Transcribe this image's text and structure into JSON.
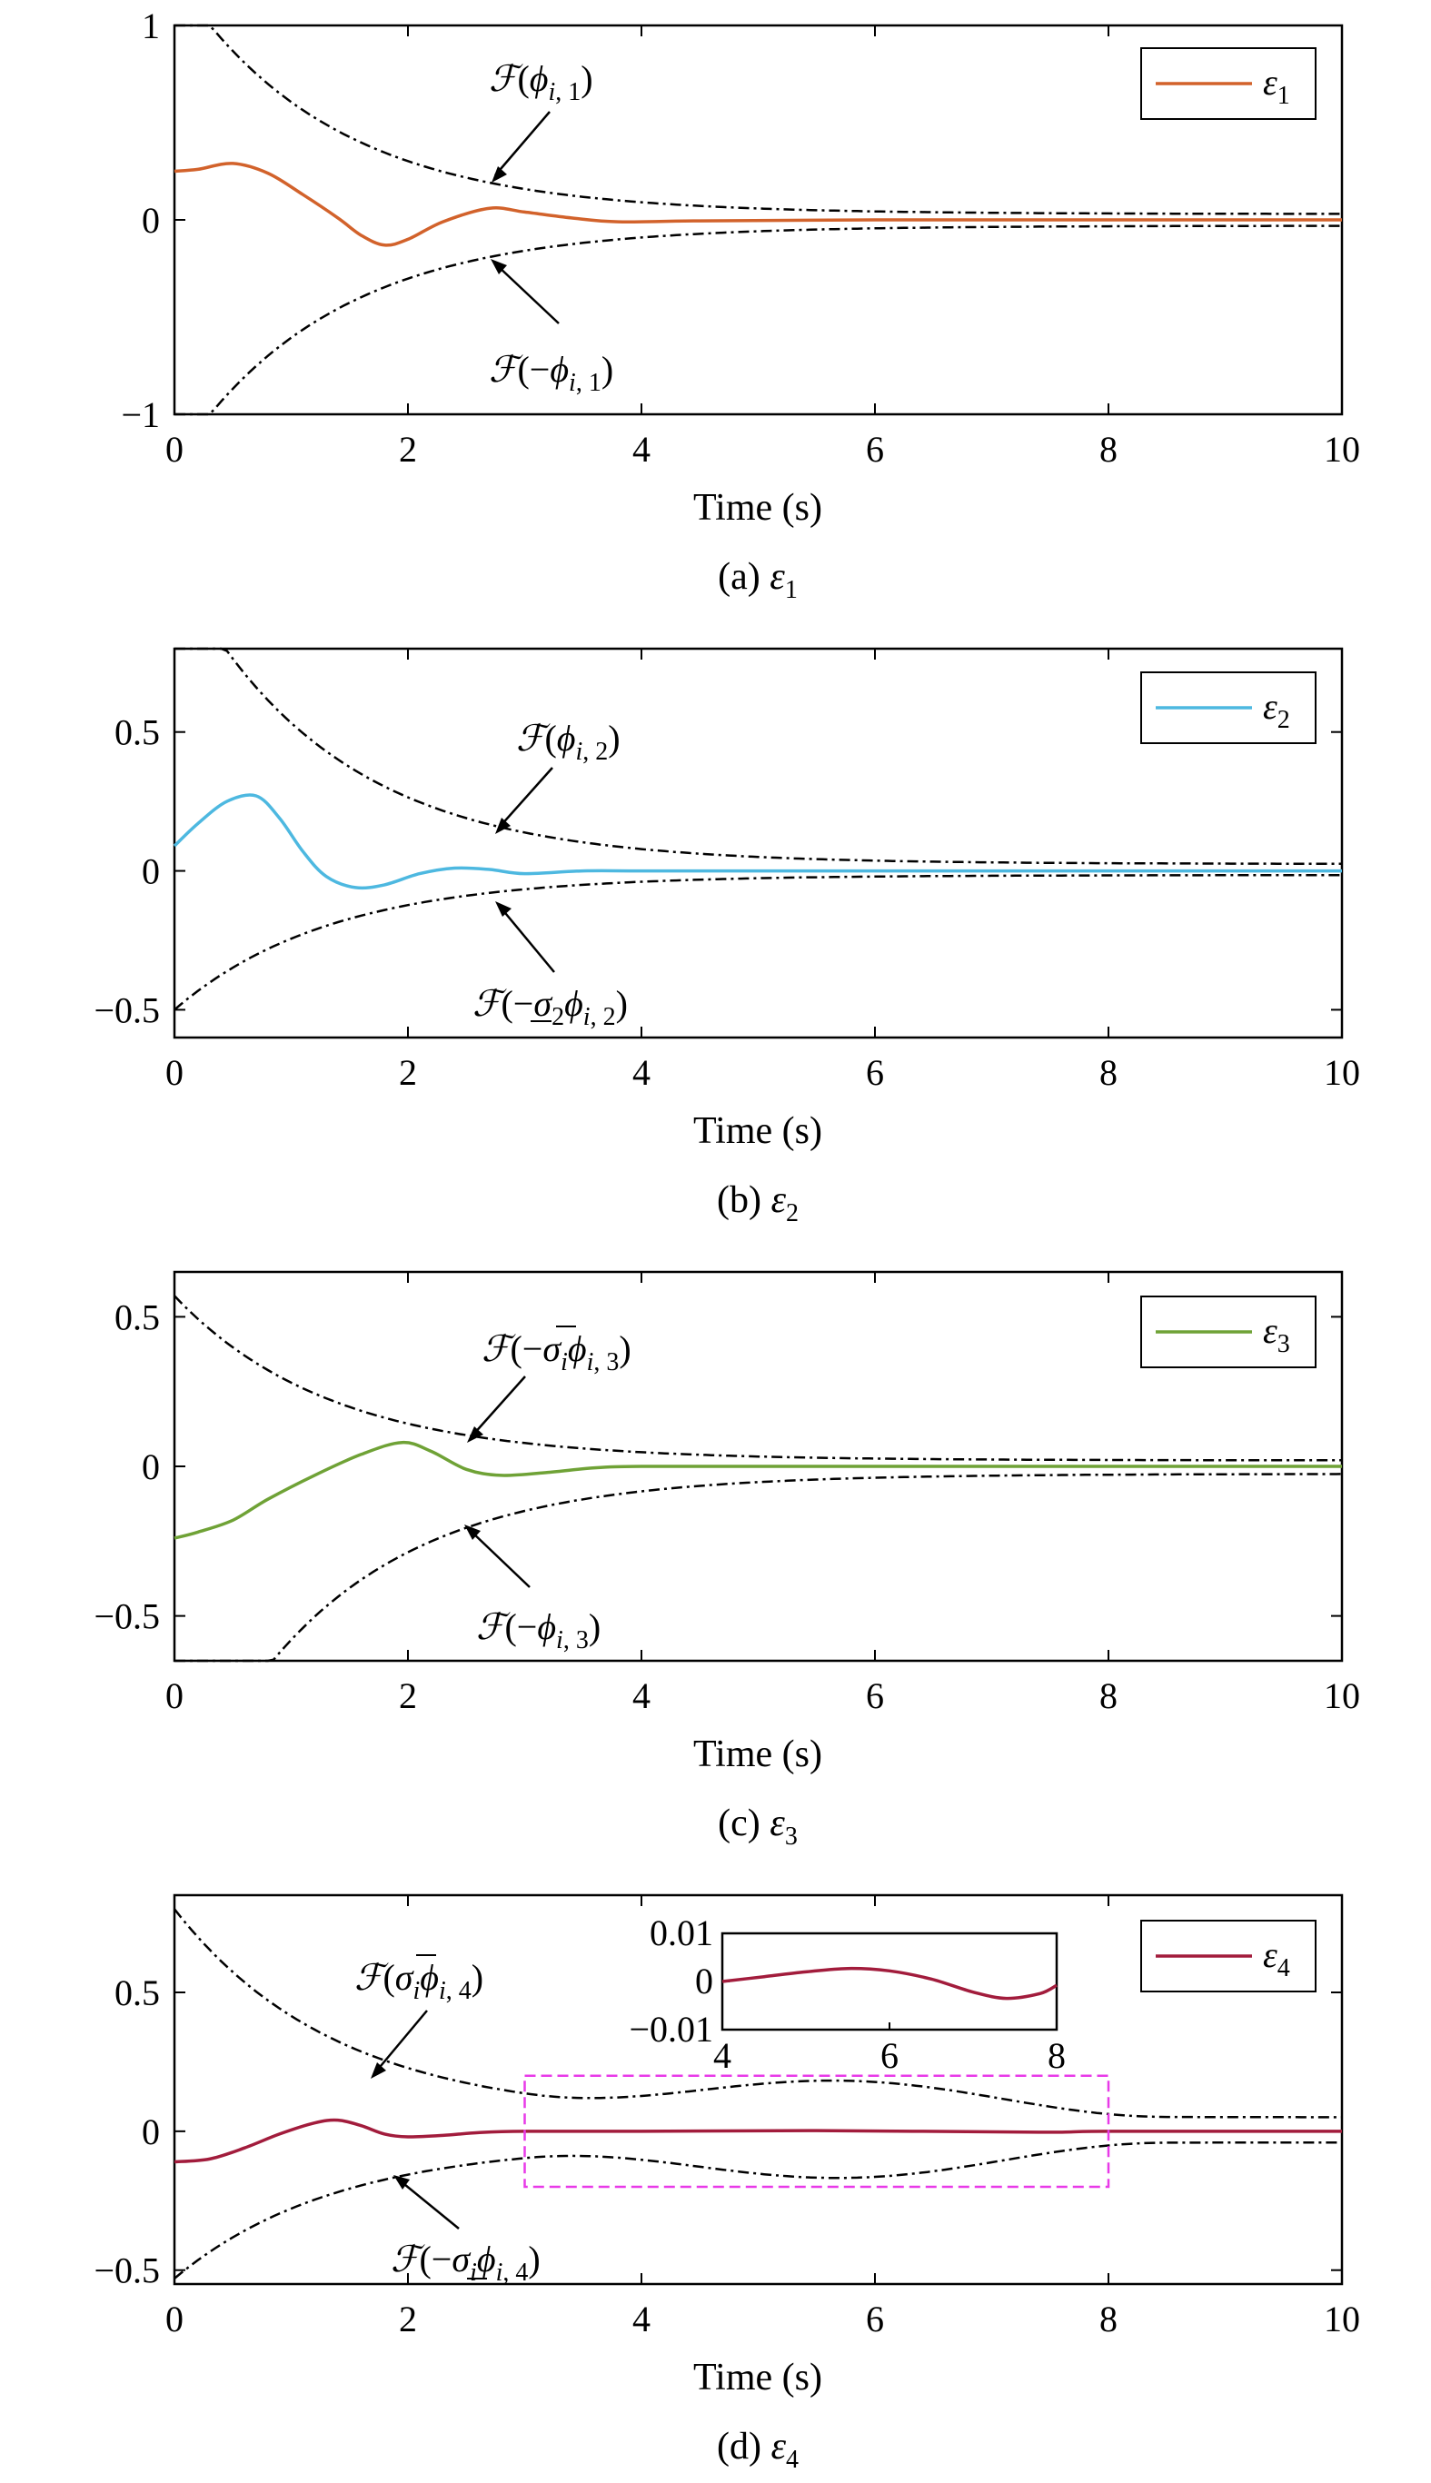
{
  "figure": {
    "x_axis_label": "Time (s)",
    "x_ticks": [
      0,
      2,
      4,
      6,
      8,
      10
    ],
    "xlim": [
      0,
      10
    ]
  },
  "chart_data": [
    {
      "type": "line",
      "caption": "(a) ε1",
      "xlabel": "Time (s)",
      "ylim": [
        -1,
        1
      ],
      "y_ticks": [
        {
          "value": 1,
          "label": "1"
        },
        {
          "value": 0,
          "label": "0"
        },
        {
          "value": -1,
          "label": "−1"
        }
      ],
      "legend": {
        "label": "ε1",
        "position": "top-right"
      },
      "color": "#D2622B",
      "series": [
        {
          "name": "ε1",
          "x": [
            0,
            0.2,
            0.5,
            0.8,
            1.1,
            1.4,
            1.6,
            1.8,
            2.0,
            2.3,
            2.7,
            3.0,
            3.4,
            3.8,
            4.5,
            6,
            8,
            10
          ],
          "y": [
            0.25,
            0.26,
            0.29,
            0.24,
            0.13,
            0.01,
            -0.08,
            -0.13,
            -0.1,
            -0.01,
            0.06,
            0.04,
            0.01,
            -0.01,
            -0.005,
            0.0,
            0.0,
            0.0
          ]
        }
      ],
      "bounds": [
        {
          "label": "F(φi,1)",
          "y_start": 1.25,
          "end": 0.03
        },
        {
          "label": "F(−φi,1)",
          "y_start": -1.25,
          "end": -0.03
        }
      ]
    },
    {
      "type": "line",
      "caption": "(b) ε2",
      "xlabel": "Time (s)",
      "ylim": [
        -0.6,
        0.8
      ],
      "y_ticks": [
        {
          "value": 0.5,
          "label": "0.5"
        },
        {
          "value": 0,
          "label": "0"
        },
        {
          "value": -0.5,
          "label": "−0.5"
        }
      ],
      "legend": {
        "label": "ε2",
        "position": "top-right"
      },
      "color": "#4DB8E0",
      "series": [
        {
          "name": "ε2",
          "x": [
            0,
            0.2,
            0.45,
            0.7,
            0.9,
            1.1,
            1.3,
            1.55,
            1.8,
            2.1,
            2.4,
            2.7,
            3.0,
            3.5,
            4.0,
            5,
            7,
            10
          ],
          "y": [
            0.09,
            0.17,
            0.25,
            0.27,
            0.19,
            0.07,
            -0.02,
            -0.06,
            -0.05,
            -0.01,
            0.01,
            0.005,
            -0.01,
            0.0,
            0.0,
            0.0,
            0.0,
            0.0
          ]
        }
      ],
      "bounds": [
        {
          "label": "F(φi,2)",
          "y_start": 1.1,
          "end": 0.025
        },
        {
          "label": "F(−σ2φi,2)",
          "y_start": -0.5,
          "end": -0.015
        }
      ]
    },
    {
      "type": "line",
      "caption": "(c) ε3",
      "xlabel": "Time (s)",
      "ylim": [
        -0.65,
        0.65
      ],
      "y_ticks": [
        {
          "value": 0.5,
          "label": "0.5"
        },
        {
          "value": 0,
          "label": "0"
        },
        {
          "value": -0.5,
          "label": "−0.5"
        }
      ],
      "legend": {
        "label": "ε3",
        "position": "top-right"
      },
      "color": "#6FA236",
      "series": [
        {
          "name": "ε3",
          "x": [
            0,
            0.2,
            0.5,
            0.8,
            1.2,
            1.6,
            1.95,
            2.2,
            2.5,
            2.8,
            3.2,
            3.6,
            4.0,
            5,
            7,
            10
          ],
          "y": [
            -0.24,
            -0.22,
            -0.18,
            -0.11,
            -0.03,
            0.04,
            0.08,
            0.05,
            -0.01,
            -0.03,
            -0.02,
            -0.005,
            0.0,
            0.0,
            0.0,
            0.0
          ]
        }
      ],
      "bounds": [
        {
          "label": "F(−σ̄iφi,3)",
          "y_start": 0.57,
          "end": 0.02
        },
        {
          "label": "F(−φi,3)",
          "y_start": -1.2,
          "end": -0.025
        }
      ]
    },
    {
      "type": "line",
      "caption": "(d) ε4",
      "xlabel": "Time (s)",
      "ylim": [
        -0.55,
        0.85
      ],
      "y_ticks": [
        {
          "value": 0.5,
          "label": "0.5"
        },
        {
          "value": 0,
          "label": "0"
        },
        {
          "value": -0.5,
          "label": "−0.5"
        }
      ],
      "legend": {
        "label": "ε4",
        "position": "top-right"
      },
      "color": "#A21C3C",
      "series": [
        {
          "name": "ε4",
          "x": [
            0,
            0.3,
            0.6,
            0.9,
            1.2,
            1.4,
            1.6,
            1.8,
            2.0,
            2.3,
            2.6,
            3.0,
            4,
            5.5,
            7.4,
            8,
            10
          ],
          "y": [
            -0.11,
            -0.1,
            -0.06,
            -0.01,
            0.03,
            0.04,
            0.02,
            -0.01,
            -0.02,
            -0.015,
            -0.005,
            0.0,
            0.0,
            0.0025,
            -0.0035,
            0.0,
            0.0
          ]
        }
      ],
      "bounds": [
        {
          "label": "F(σ̄iφi,4)",
          "y_start": 0.8,
          "end": 0.05
        },
        {
          "label": "F(−σiφi,4)",
          "y_start": -0.53,
          "end": -0.04
        }
      ],
      "highlight_box": {
        "x": [
          3,
          8
        ],
        "y": [
          -0.2,
          0.2
        ],
        "color": "#E83AE8"
      },
      "inset": {
        "xlim": [
          4,
          8
        ],
        "ylim": [
          -0.01,
          0.01
        ],
        "x_ticks": [
          4,
          6,
          8
        ],
        "y_ticks": [
          {
            "value": 0.01,
            "label": "0.01"
          },
          {
            "value": 0,
            "label": "0"
          },
          {
            "value": -0.01,
            "label": "−0.01"
          }
        ],
        "x": [
          4,
          4.5,
          5,
          5.5,
          6,
          6.5,
          7,
          7.4,
          7.8,
          8
        ],
        "y": [
          0,
          0.001,
          0.002,
          0.0027,
          0.0022,
          0.0005,
          -0.0022,
          -0.0035,
          -0.0025,
          -0.0008
        ]
      }
    }
  ]
}
